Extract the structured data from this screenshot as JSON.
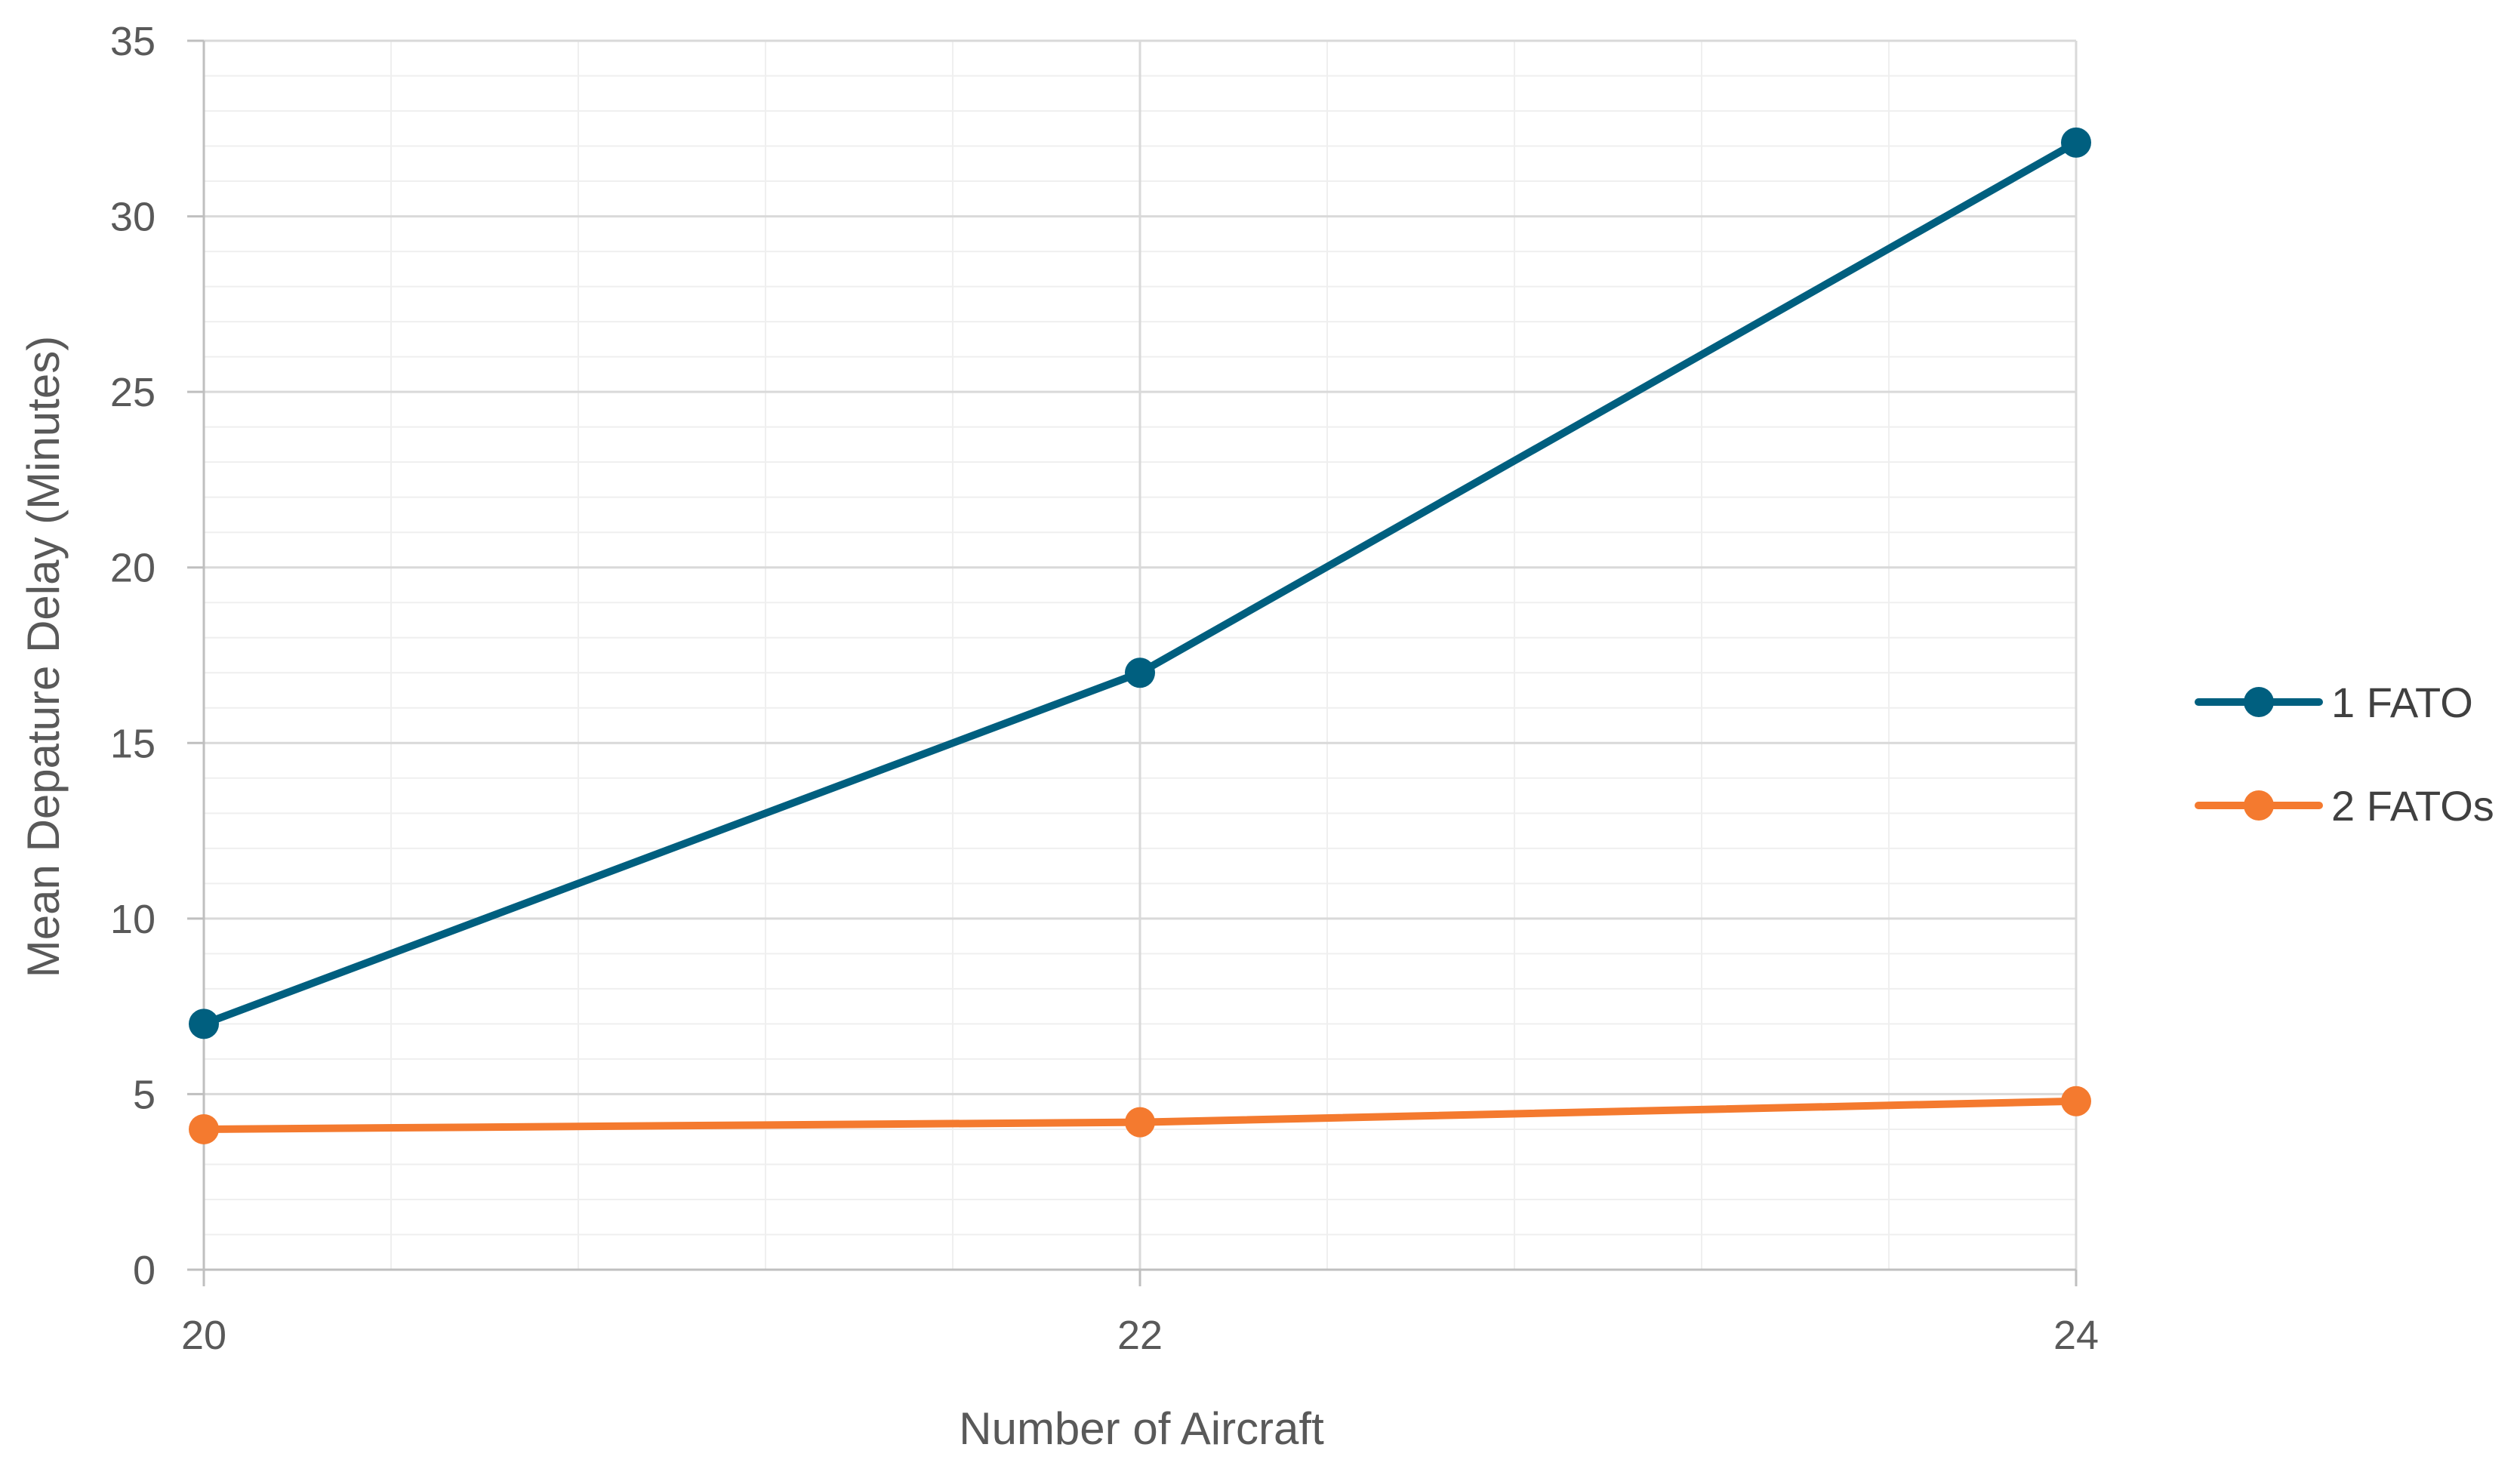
{
  "chart_data": {
    "type": "line",
    "title": "",
    "xlabel": "Number of Aircraft",
    "ylabel": "Mean Depature Delay (Minutes)",
    "x": [
      20,
      22,
      24
    ],
    "xticks": [
      "20",
      "22",
      "24"
    ],
    "xlim": [
      20,
      24
    ],
    "ylim": [
      0,
      35
    ],
    "yticks": [
      "0",
      "5",
      "10",
      "15",
      "20",
      "25",
      "30",
      "35"
    ],
    "grid": true,
    "legend_position": "right",
    "series": [
      {
        "name": "1 FATO",
        "values": [
          7,
          17,
          32.1
        ],
        "color": "#005f7f"
      },
      {
        "name": "2 FATOs",
        "values": [
          4,
          4.2,
          4.8
        ],
        "color": "#f47a2f"
      }
    ]
  }
}
